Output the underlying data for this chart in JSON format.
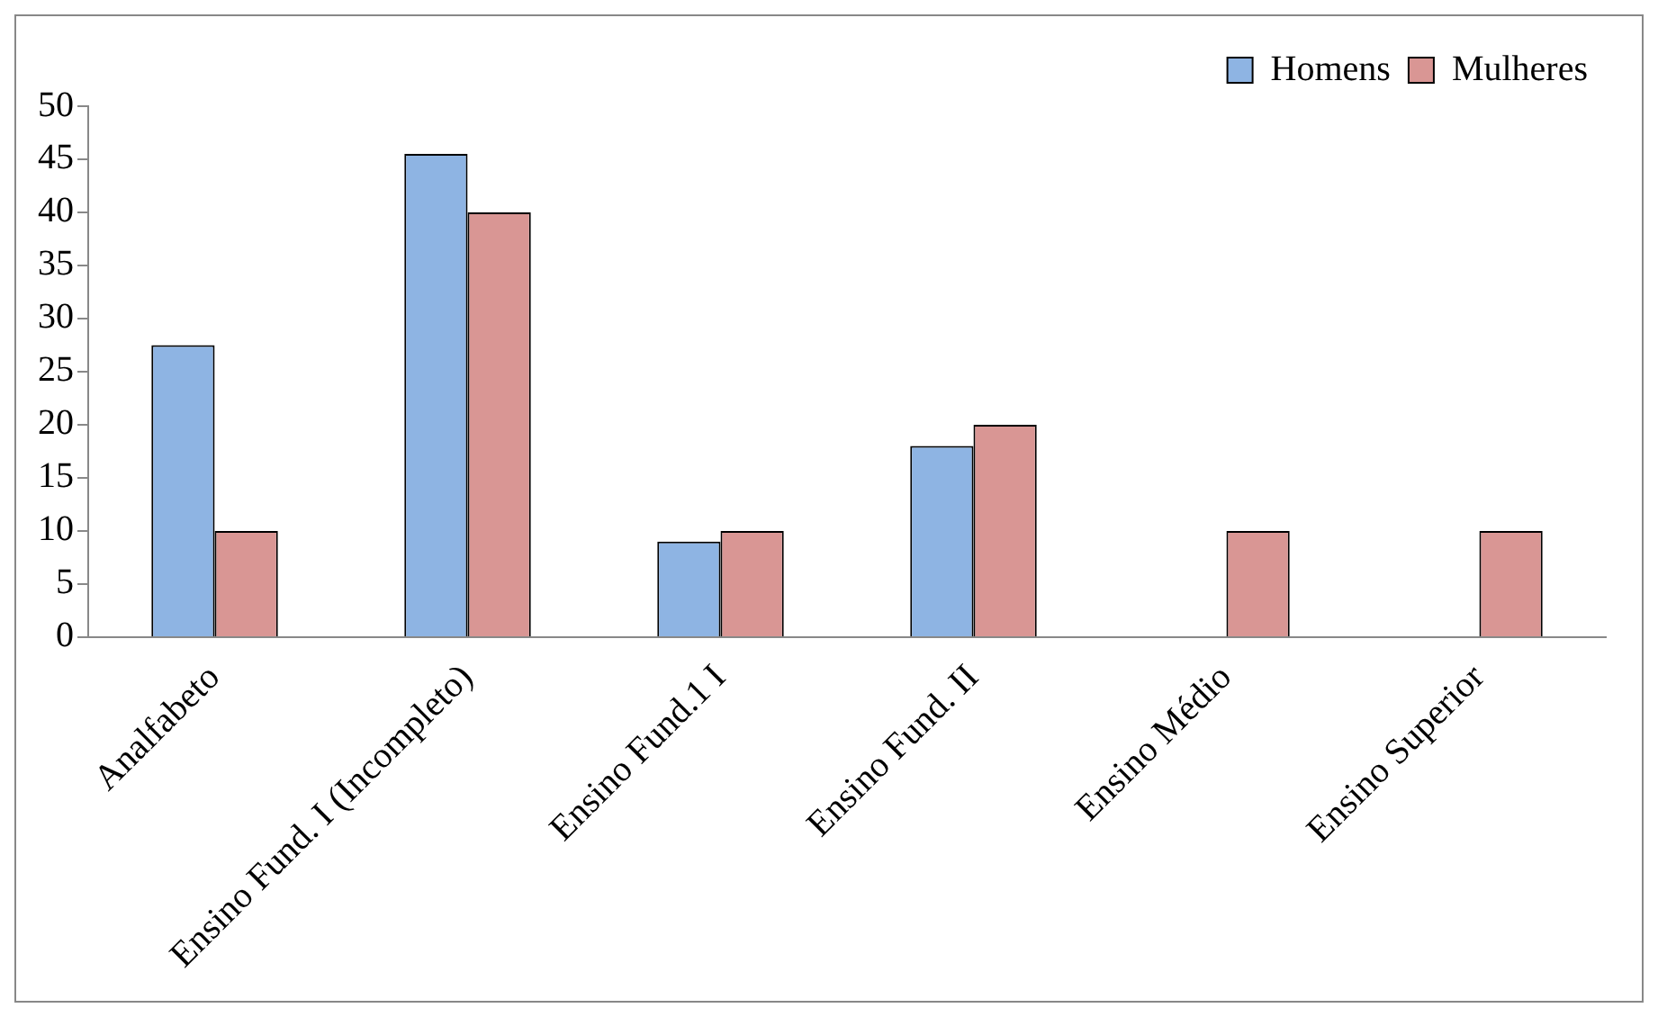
{
  "chart_data": {
    "type": "bar",
    "categories": [
      "Analfabeto",
      "Ensino Fund. I (Incompleto)",
      "Ensino Fund.1 I",
      "Ensino Fund. II",
      "Ensino Médio",
      "Ensino Superior"
    ],
    "series": [
      {
        "name": "Homens",
        "color": "#8eb4e3",
        "values": [
          27.5,
          45.5,
          9,
          18,
          0,
          0
        ]
      },
      {
        "name": "Mulheres",
        "color": "#d99694",
        "values": [
          10,
          40,
          10,
          20,
          10,
          10
        ]
      }
    ],
    "ylim": [
      0,
      50
    ],
    "yticks": [
      0,
      5,
      10,
      15,
      20,
      25,
      30,
      35,
      40,
      45,
      50
    ],
    "grid": false,
    "legend": "top right"
  }
}
